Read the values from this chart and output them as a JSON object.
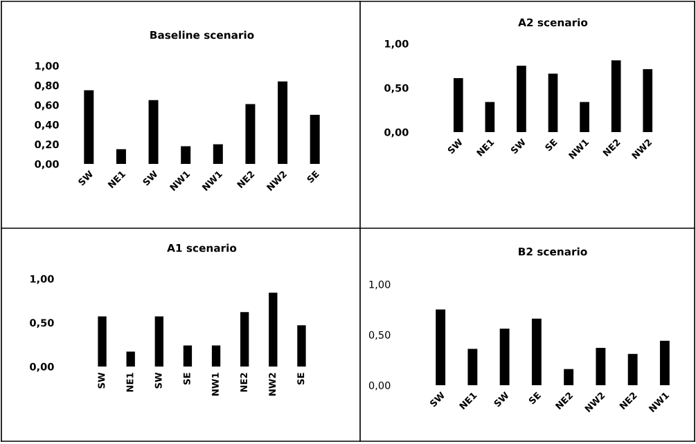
{
  "chart_data": [
    {
      "type": "bar",
      "title": "Baseline scenario",
      "categories": [
        "SW",
        "NE1",
        "SW",
        "NW1",
        "NW1",
        "NE2",
        "NW2",
        "SE"
      ],
      "values": [
        0.75,
        0.15,
        0.65,
        0.18,
        0.2,
        0.61,
        0.84,
        0.5
      ],
      "color": "#000000",
      "ylim": [
        0,
        1
      ],
      "yticks": [
        {
          "value": 0,
          "label": "0,00"
        },
        {
          "value": 0.2,
          "label": "0,20"
        },
        {
          "value": 0.4,
          "label": "0,40"
        },
        {
          "value": 0.6,
          "label": "0,60"
        },
        {
          "value": 0.8,
          "label": "0,80"
        },
        {
          "value": 1,
          "label": "1,00"
        }
      ]
    },
    {
      "type": "bar",
      "title": "A2 scenario",
      "categories": [
        "SW",
        "NE1",
        "SW",
        "SE",
        "NW1",
        "NE2",
        "NW2"
      ],
      "values": [
        0.61,
        0.34,
        0.75,
        0.66,
        0.34,
        0.81,
        0.71
      ],
      "color": "#000000",
      "ylim": [
        0,
        1
      ],
      "yticks": [
        {
          "value": 0,
          "label": "0,00"
        },
        {
          "value": 0.5,
          "label": "0,50"
        },
        {
          "value": 1,
          "label": "1,00"
        }
      ]
    },
    {
      "type": "bar",
      "title": "A1 scenario",
      "categories": [
        "SW",
        "NE1",
        "SW",
        "SE",
        "NW1",
        "NE2",
        "NW2",
        "SE"
      ],
      "values": [
        0.57,
        0.17,
        0.57,
        0.24,
        0.24,
        0.62,
        0.84,
        0.47
      ],
      "color": "#000000",
      "ylim": [
        0,
        1
      ],
      "yticks": [
        {
          "value": 0,
          "label": "0,00"
        },
        {
          "value": 0.5,
          "label": "0,50"
        },
        {
          "value": 1,
          "label": "1,00"
        }
      ]
    },
    {
      "type": "bar",
      "title": "B2 scenario",
      "categories": [
        "SW",
        "NE1",
        "SW",
        "SE",
        "NE2",
        "NW2",
        "NE2",
        "NW1"
      ],
      "values": [
        0.75,
        0.36,
        0.56,
        0.66,
        0.16,
        0.37,
        0.31,
        0.44
      ],
      "color": "#000000",
      "ylim": [
        0,
        1
      ],
      "yticks": [
        {
          "value": 0,
          "label": "0,00"
        },
        {
          "value": 0.5,
          "label": "0,50"
        },
        {
          "value": 1,
          "label": "1,00"
        }
      ]
    }
  ]
}
